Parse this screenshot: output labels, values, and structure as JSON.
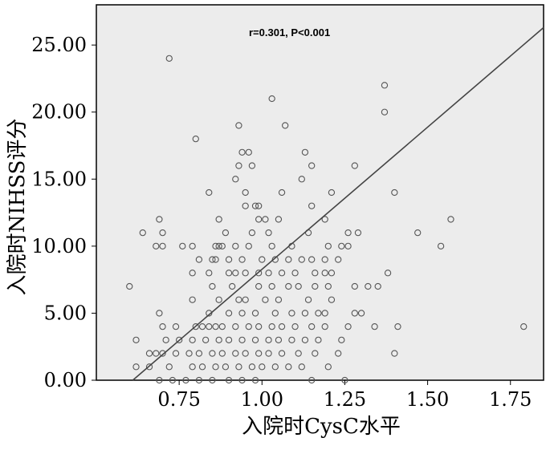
{
  "chart_data": {
    "type": "scatter",
    "title": "",
    "annotation": "r=0.301, P<0.001",
    "xlabel": "入院时CysC水平",
    "ylabel": "入院时NIHSS评分",
    "xlim": [
      0.5,
      1.85
    ],
    "ylim": [
      0,
      28
    ],
    "x_ticks": [
      "0.75",
      "1.00",
      "1.25",
      "1.50",
      "1.75"
    ],
    "y_ticks": [
      "0.00",
      "5.00",
      "10.00",
      "15.00",
      "20.00",
      "25.00"
    ],
    "grid": false,
    "colors": {
      "plot_bg": "#ececec",
      "point": "#555555",
      "line": "#444444"
    },
    "fit_line": {
      "x0": 0.61,
      "y0": 0.0,
      "x1": 1.85,
      "y1": 26.3
    },
    "points": [
      [
        0.72,
        24
      ],
      [
        1.03,
        21
      ],
      [
        1.37,
        22
      ],
      [
        1.37,
        20
      ],
      [
        0.93,
        19
      ],
      [
        1.07,
        19
      ],
      [
        0.8,
        18
      ],
      [
        0.94,
        17
      ],
      [
        0.96,
        17
      ],
      [
        1.13,
        17
      ],
      [
        0.93,
        16
      ],
      [
        0.97,
        16
      ],
      [
        1.15,
        16
      ],
      [
        1.28,
        16
      ],
      [
        0.92,
        15
      ],
      [
        1.12,
        15
      ],
      [
        0.84,
        14
      ],
      [
        0.95,
        14
      ],
      [
        1.06,
        14
      ],
      [
        1.21,
        14
      ],
      [
        1.4,
        14
      ],
      [
        0.95,
        13
      ],
      [
        0.98,
        13
      ],
      [
        0.99,
        13
      ],
      [
        1.15,
        13
      ],
      [
        0.69,
        12
      ],
      [
        0.87,
        12
      ],
      [
        0.99,
        12
      ],
      [
        1.01,
        12
      ],
      [
        1.05,
        12
      ],
      [
        1.19,
        12
      ],
      [
        1.57,
        12
      ],
      [
        0.64,
        11
      ],
      [
        0.7,
        11
      ],
      [
        0.89,
        11
      ],
      [
        0.97,
        11
      ],
      [
        1.02,
        11
      ],
      [
        1.14,
        11
      ],
      [
        1.26,
        11
      ],
      [
        1.29,
        11
      ],
      [
        1.47,
        11
      ],
      [
        0.68,
        10
      ],
      [
        0.7,
        10
      ],
      [
        0.76,
        10
      ],
      [
        0.79,
        10
      ],
      [
        0.86,
        10
      ],
      [
        0.87,
        10
      ],
      [
        0.88,
        10
      ],
      [
        0.92,
        10
      ],
      [
        0.96,
        10
      ],
      [
        1.03,
        10
      ],
      [
        1.09,
        10
      ],
      [
        1.2,
        10
      ],
      [
        1.24,
        10
      ],
      [
        1.26,
        10
      ],
      [
        1.54,
        10
      ],
      [
        0.81,
        9
      ],
      [
        0.85,
        9
      ],
      [
        0.86,
        9
      ],
      [
        0.9,
        9
      ],
      [
        0.94,
        9
      ],
      [
        1.0,
        9
      ],
      [
        1.04,
        9
      ],
      [
        1.08,
        9
      ],
      [
        1.12,
        9
      ],
      [
        1.15,
        9
      ],
      [
        1.19,
        9
      ],
      [
        1.23,
        9
      ],
      [
        0.79,
        8
      ],
      [
        0.84,
        8
      ],
      [
        0.9,
        8
      ],
      [
        0.92,
        8
      ],
      [
        0.95,
        8
      ],
      [
        0.99,
        8
      ],
      [
        1.02,
        8
      ],
      [
        1.06,
        8
      ],
      [
        1.1,
        8
      ],
      [
        1.16,
        8
      ],
      [
        1.19,
        8
      ],
      [
        1.21,
        8
      ],
      [
        1.38,
        8
      ],
      [
        0.6,
        7
      ],
      [
        0.85,
        7
      ],
      [
        0.91,
        7
      ],
      [
        0.99,
        7
      ],
      [
        1.03,
        7
      ],
      [
        1.08,
        7
      ],
      [
        1.11,
        7
      ],
      [
        1.16,
        7
      ],
      [
        1.2,
        7
      ],
      [
        1.28,
        7
      ],
      [
        1.32,
        7
      ],
      [
        1.35,
        7
      ],
      [
        0.79,
        6
      ],
      [
        0.87,
        6
      ],
      [
        0.93,
        6
      ],
      [
        0.95,
        6
      ],
      [
        1.01,
        6
      ],
      [
        1.05,
        6
      ],
      [
        1.14,
        6
      ],
      [
        1.21,
        6
      ],
      [
        0.69,
        5
      ],
      [
        0.84,
        5
      ],
      [
        0.9,
        5
      ],
      [
        0.94,
        5
      ],
      [
        0.98,
        5
      ],
      [
        1.04,
        5
      ],
      [
        1.09,
        5
      ],
      [
        1.13,
        5
      ],
      [
        1.17,
        5
      ],
      [
        1.19,
        5
      ],
      [
        1.28,
        5
      ],
      [
        1.3,
        5
      ],
      [
        0.7,
        4
      ],
      [
        0.74,
        4
      ],
      [
        0.8,
        4
      ],
      [
        0.82,
        4
      ],
      [
        0.84,
        4
      ],
      [
        0.86,
        4
      ],
      [
        0.88,
        4
      ],
      [
        0.92,
        4
      ],
      [
        0.96,
        4
      ],
      [
        0.99,
        4
      ],
      [
        1.03,
        4
      ],
      [
        1.06,
        4
      ],
      [
        1.1,
        4
      ],
      [
        1.15,
        4
      ],
      [
        1.19,
        4
      ],
      [
        1.26,
        4
      ],
      [
        1.34,
        4
      ],
      [
        1.41,
        4
      ],
      [
        1.79,
        4
      ],
      [
        0.62,
        3
      ],
      [
        0.71,
        3
      ],
      [
        0.75,
        3
      ],
      [
        0.79,
        3
      ],
      [
        0.83,
        3
      ],
      [
        0.87,
        3
      ],
      [
        0.9,
        3
      ],
      [
        0.94,
        3
      ],
      [
        0.98,
        3
      ],
      [
        1.02,
        3
      ],
      [
        1.05,
        3
      ],
      [
        1.09,
        3
      ],
      [
        1.13,
        3
      ],
      [
        1.17,
        3
      ],
      [
        1.24,
        3
      ],
      [
        0.66,
        2
      ],
      [
        0.68,
        2
      ],
      [
        0.7,
        2
      ],
      [
        0.74,
        2
      ],
      [
        0.78,
        2
      ],
      [
        0.81,
        2
      ],
      [
        0.85,
        2
      ],
      [
        0.88,
        2
      ],
      [
        0.92,
        2
      ],
      [
        0.95,
        2
      ],
      [
        0.99,
        2
      ],
      [
        1.02,
        2
      ],
      [
        1.06,
        2
      ],
      [
        1.11,
        2
      ],
      [
        1.16,
        2
      ],
      [
        1.23,
        2
      ],
      [
        1.4,
        2
      ],
      [
        0.62,
        1
      ],
      [
        0.66,
        1
      ],
      [
        0.72,
        1
      ],
      [
        0.79,
        1
      ],
      [
        0.82,
        1
      ],
      [
        0.86,
        1
      ],
      [
        0.89,
        1
      ],
      [
        0.93,
        1
      ],
      [
        0.97,
        1
      ],
      [
        1.0,
        1
      ],
      [
        1.04,
        1
      ],
      [
        1.08,
        1
      ],
      [
        1.12,
        1
      ],
      [
        1.2,
        1
      ],
      [
        0.69,
        0
      ],
      [
        0.73,
        0
      ],
      [
        0.77,
        0
      ],
      [
        0.81,
        0
      ],
      [
        0.85,
        0
      ],
      [
        0.9,
        0
      ],
      [
        0.94,
        0
      ],
      [
        0.98,
        0
      ],
      [
        1.15,
        0
      ],
      [
        1.25,
        0
      ]
    ]
  }
}
